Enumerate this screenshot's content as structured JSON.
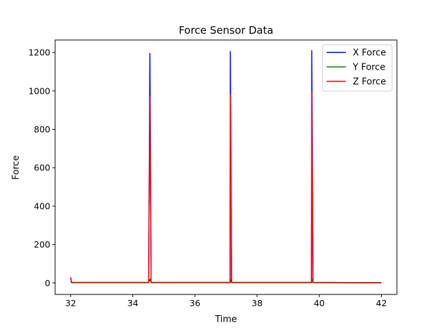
{
  "chart_data": {
    "type": "line",
    "title": "Force Sensor Data",
    "xlabel": "Time",
    "ylabel": "Force",
    "xlim": [
      31.5,
      42.5
    ],
    "ylim": [
      -60,
      1265
    ],
    "xticks": [
      32,
      34,
      36,
      38,
      40,
      42
    ],
    "yticks": [
      0,
      200,
      400,
      600,
      800,
      1000,
      1200
    ],
    "grid": false,
    "legend_position": "top-right",
    "series": [
      {
        "name": "X Force",
        "color": "#0000ff",
        "points": [
          [
            32.0,
            25
          ],
          [
            32.03,
            2
          ],
          [
            34.51,
            2
          ],
          [
            34.55,
            1195
          ],
          [
            34.59,
            2
          ],
          [
            37.13,
            2
          ],
          [
            37.14,
            1205
          ],
          [
            37.18,
            2
          ],
          [
            39.75,
            2
          ],
          [
            39.76,
            1210
          ],
          [
            39.8,
            2
          ],
          [
            42.0,
            1
          ]
        ]
      },
      {
        "name": "Y Force",
        "color": "#008000",
        "points": [
          [
            32.0,
            8
          ],
          [
            32.03,
            1
          ],
          [
            34.51,
            1
          ],
          [
            34.55,
            20
          ],
          [
            34.59,
            1
          ],
          [
            37.13,
            1
          ],
          [
            37.14,
            18
          ],
          [
            37.18,
            1
          ],
          [
            39.75,
            1
          ],
          [
            39.76,
            22
          ],
          [
            39.8,
            1
          ],
          [
            42.0,
            0
          ]
        ]
      },
      {
        "name": "Z Force",
        "color": "#ff0000",
        "points": [
          [
            32.0,
            30
          ],
          [
            32.03,
            3
          ],
          [
            34.51,
            3
          ],
          [
            34.55,
            970
          ],
          [
            34.59,
            3
          ],
          [
            37.13,
            3
          ],
          [
            37.14,
            980
          ],
          [
            37.18,
            3
          ],
          [
            39.75,
            3
          ],
          [
            39.76,
            995
          ],
          [
            39.8,
            3
          ],
          [
            42.0,
            1
          ]
        ]
      }
    ]
  }
}
